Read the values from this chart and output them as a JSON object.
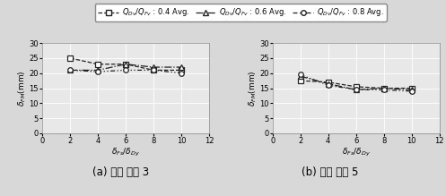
{
  "x": [
    2,
    4,
    6,
    8,
    10
  ],
  "left": {
    "s04": [
      25.0,
      23.0,
      23.0,
      21.0,
      21.0
    ],
    "s06": [
      21.0,
      21.0,
      23.0,
      22.0,
      22.0
    ],
    "s08": [
      21.0,
      20.5,
      21.0,
      21.0,
      20.0
    ]
  },
  "right": {
    "s04": [
      17.5,
      17.0,
      15.5,
      15.0,
      15.0
    ],
    "s06": [
      19.0,
      16.5,
      14.5,
      15.0,
      14.5
    ],
    "s08": [
      19.5,
      16.0,
      14.5,
      14.5,
      14.0
    ]
  },
  "ylim": [
    0,
    30
  ],
  "xlim": [
    0,
    12
  ],
  "xticks": [
    0,
    2,
    4,
    6,
    8,
    10,
    12
  ],
  "yticks": [
    0,
    5,
    10,
    15,
    20,
    25,
    30
  ],
  "xlabel": "$\\delta_{Fs}/\\delta_{Dy}$",
  "ylabel": "$\\delta_{FM}$(mm)",
  "label_04": "$Q_{Dv}/Q_{Fv}$ : 0.4 Avg.",
  "label_06": "$Q_{Dv}/Q_{Fv}$ : 0.6 Avg.",
  "label_08": "$Q_{Dv}/Q_{Fv}$ : 0.8 Avg.",
  "subtitle_left": "(a) 주기 비율 3",
  "subtitle_right": "(b) 주기 비율 5",
  "color": "#222222",
  "bg_color": "#e8e8e8",
  "fig_bg": "#d8d8d8",
  "tick_fontsize": 6,
  "label_fontsize": 6.5,
  "legend_fontsize": 6,
  "subtitle_fontsize": 8.5
}
